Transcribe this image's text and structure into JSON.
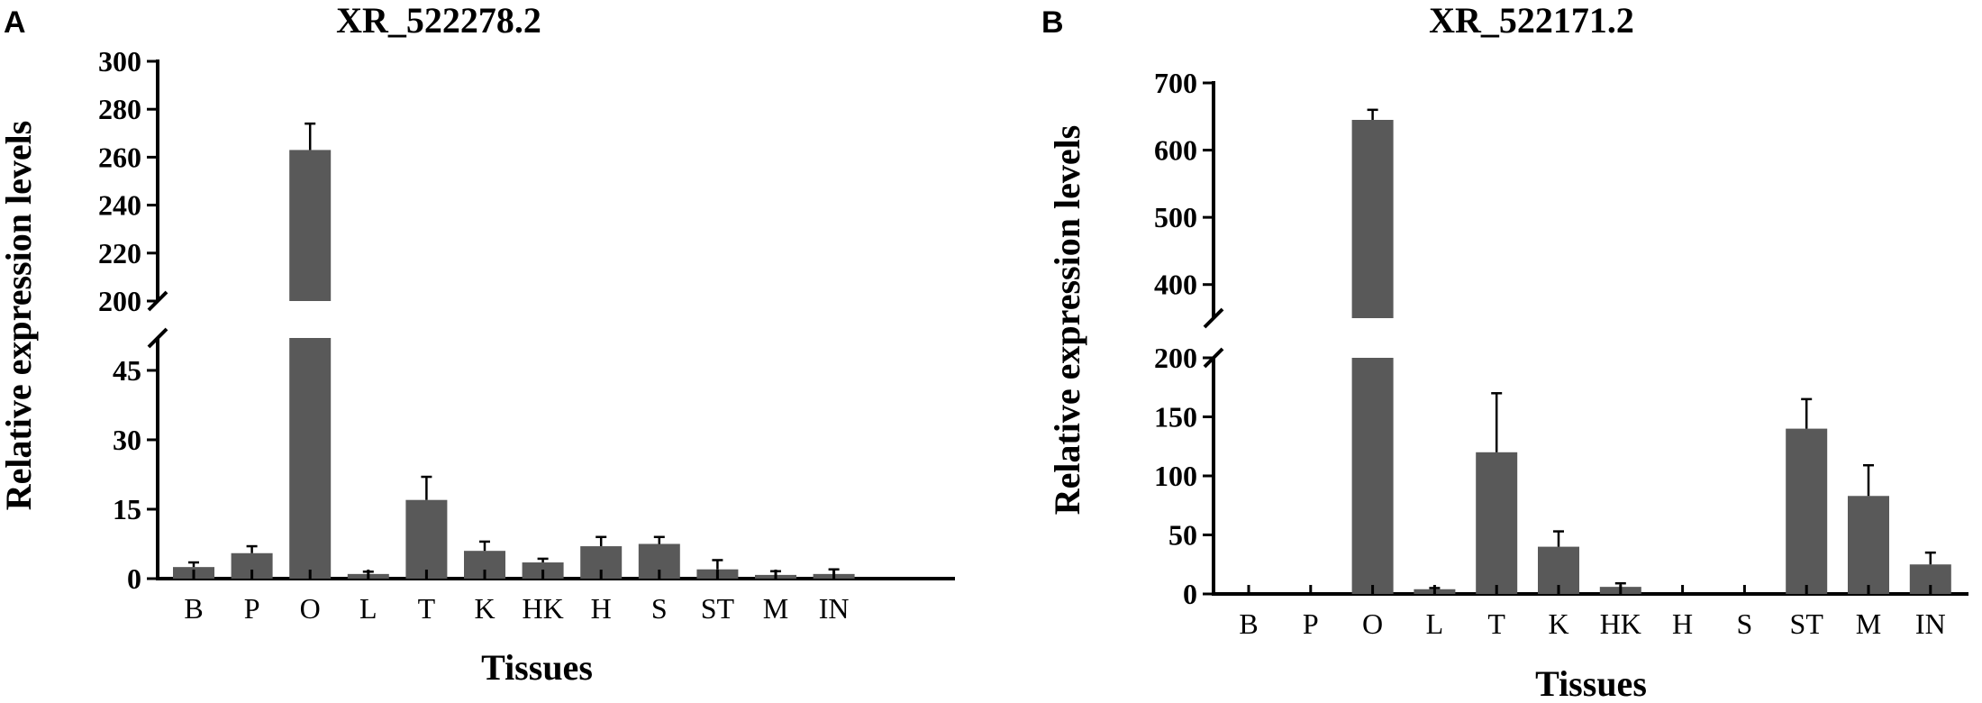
{
  "chart_data": [
    {
      "panel": "A",
      "type": "bar",
      "title": "XR_522278.2",
      "xlabel": "Tissues",
      "ylabel": "Relative expression levels",
      "categories": [
        "B",
        "P",
        "O",
        "L",
        "T",
        "K",
        "HK",
        "H",
        "S",
        "ST",
        "M",
        "IN"
      ],
      "values": [
        2.5,
        5.5,
        263,
        1.0,
        17.0,
        6.0,
        3.5,
        7.0,
        7.5,
        2.0,
        0.8,
        1.0
      ],
      "errors": [
        1.0,
        1.5,
        11,
        0.5,
        5.0,
        2.0,
        0.8,
        2.0,
        1.5,
        2.0,
        0.8,
        1.0
      ],
      "y_axis_break": {
        "lower_range": [
          0,
          52
        ],
        "upper_range": [
          200,
          300
        ]
      },
      "yticks_lower": [
        0,
        15,
        30,
        45
      ],
      "yticks_upper": [
        200,
        220,
        240,
        260,
        280,
        300
      ],
      "bar_color": "#595959"
    },
    {
      "panel": "B",
      "type": "bar",
      "title": "XR_522171.2",
      "xlabel": "Tissues",
      "ylabel": "Relative expression levels",
      "categories": [
        "B",
        "P",
        "O",
        "L",
        "T",
        "K",
        "HK",
        "H",
        "S",
        "ST",
        "M",
        "IN"
      ],
      "values": [
        0,
        0,
        645,
        4,
        120,
        40,
        6,
        0,
        0,
        140,
        83,
        25
      ],
      "errors": [
        0,
        0,
        15,
        1,
        50,
        13,
        3,
        0,
        0,
        25,
        26,
        10
      ],
      "y_axis_break": {
        "lower_range": [
          0,
          200
        ],
        "upper_range": [
          350,
          700
        ]
      },
      "yticks_lower": [
        0,
        50,
        100,
        150,
        200
      ],
      "yticks_upper": [
        400,
        500,
        600,
        700
      ],
      "bar_color": "#595959"
    }
  ]
}
